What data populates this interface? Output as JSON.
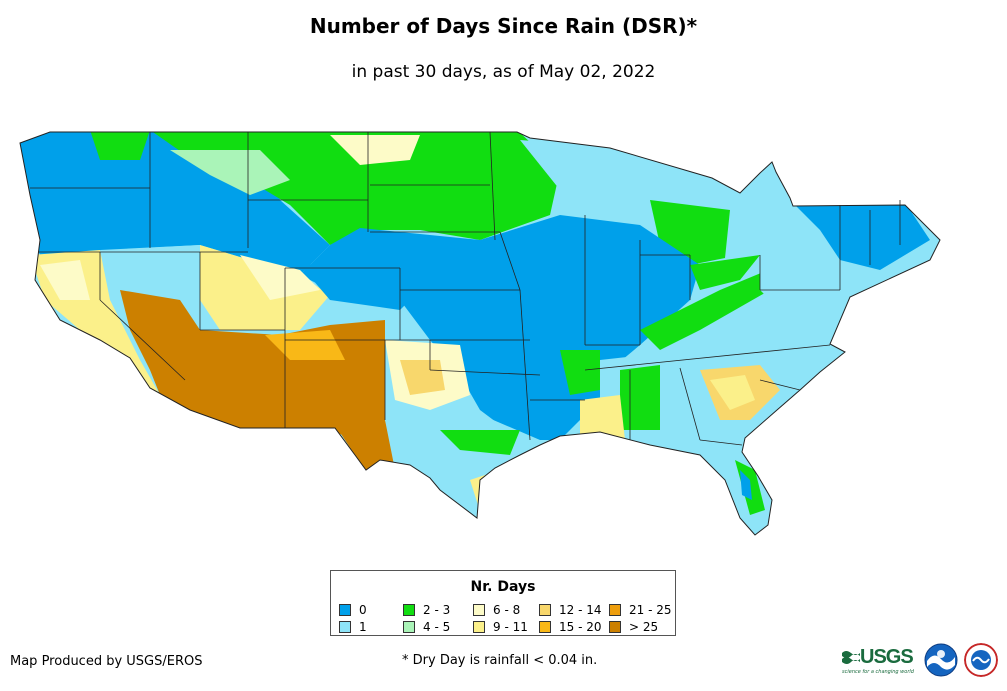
{
  "title": "Number of Days Since Rain (DSR)*",
  "subtitle": "in past 30 days, as of May 02, 2022",
  "legend": {
    "title": "Nr. Days",
    "items": [
      {
        "label": "0",
        "color": "#00a0ea"
      },
      {
        "label": "1",
        "color": "#8ee4f8"
      },
      {
        "label": "2 - 3",
        "color": "#11dd11"
      },
      {
        "label": "4 - 5",
        "color": "#aaf4b8"
      },
      {
        "label": "6 - 8",
        "color": "#fdfbc8"
      },
      {
        "label": "9 - 11",
        "color": "#fbf08a"
      },
      {
        "label": "12 - 14",
        "color": "#f8d76c"
      },
      {
        "label": "15 - 20",
        "color": "#f9b817"
      },
      {
        "label": "21 - 25",
        "color": "#ee9e0c"
      },
      {
        "label": "> 25",
        "color": "#cc8000"
      }
    ]
  },
  "credit": "Map Produced by USGS/EROS",
  "footnote": "* Dry Day is rainfall < 0.04 in.",
  "logos": {
    "usgs_text": "USGS",
    "usgs_tagline": "science for a changing world"
  }
}
